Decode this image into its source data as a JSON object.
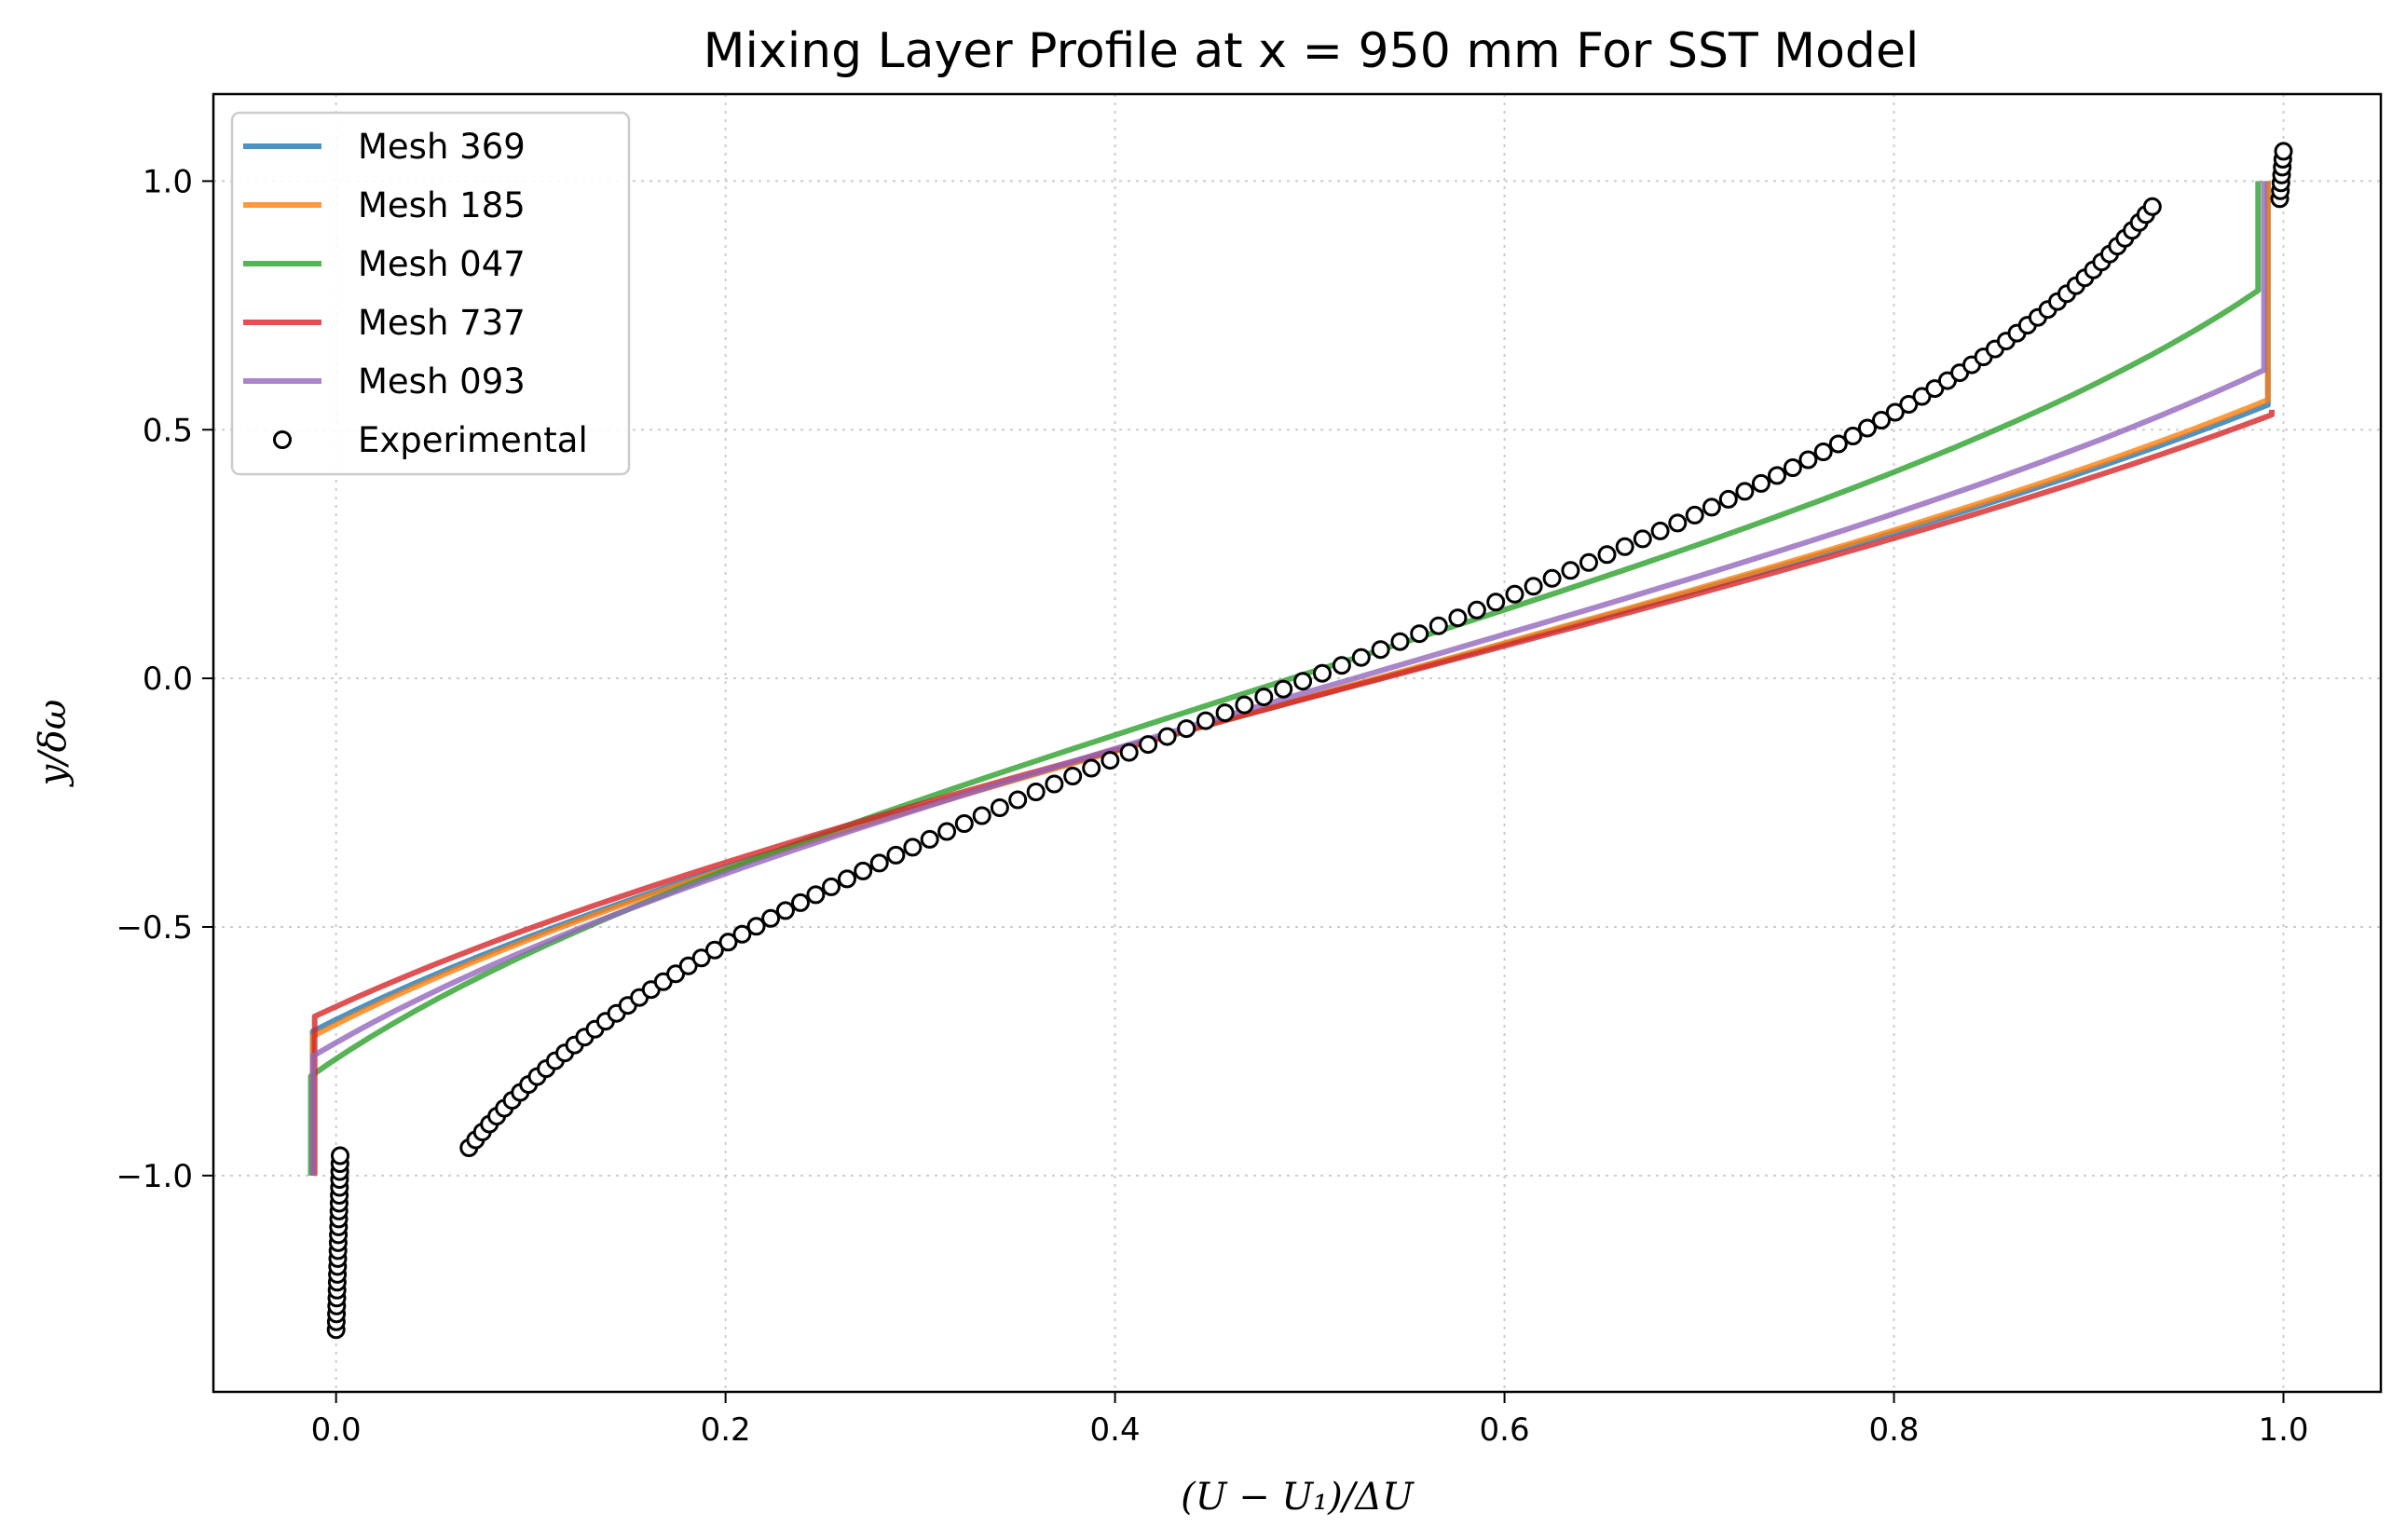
{
  "chart_data": {
    "type": "line",
    "title": "Mixing Layer Profile at x = 950 mm For SST Model",
    "xlabel": "(U − U₁)/ΔU",
    "ylabel": "y/δω",
    "xlim": [
      -0.063,
      1.05
    ],
    "ylim": [
      -1.435,
      1.175
    ],
    "xticks": [
      0.0,
      0.2,
      0.4,
      0.6,
      0.8,
      1.0
    ],
    "yticks": [
      -1.0,
      -0.5,
      0.0,
      0.5,
      1.0
    ],
    "xtick_labels": [
      "0.0",
      "0.2",
      "0.4",
      "0.6",
      "0.8",
      "1.0"
    ],
    "ytick_labels": [
      "−1.0",
      "−0.5",
      "0.0",
      "0.5",
      "1.0"
    ],
    "grid": true,
    "legend_position": "top-left",
    "series": [
      {
        "name": "Mesh 369",
        "color": "#1f77b4",
        "y_lower_knee": -0.71,
        "y_upper_knee": 0.55,
        "u_min": -0.012,
        "u_max": 0.992,
        "top_y": 1.0
      },
      {
        "name": "Mesh 185",
        "color": "#ff7f0e",
        "y_lower_knee": -0.72,
        "y_upper_knee": 0.56,
        "u_min": -0.012,
        "u_max": 0.992,
        "top_y": 1.0
      },
      {
        "name": "Mesh 047",
        "color": "#2ca02c",
        "y_lower_knee": -0.8,
        "y_upper_knee": 0.78,
        "u_min": -0.013,
        "u_max": 0.987,
        "top_y": 1.0
      },
      {
        "name": "Mesh 737",
        "color": "#d62728",
        "y_lower_knee": -0.68,
        "y_upper_knee": 0.53,
        "u_min": -0.011,
        "u_max": 0.994,
        "top_y": 0.54
      },
      {
        "name": "Mesh 093",
        "color": "#9467bd",
        "y_lower_knee": -0.76,
        "y_upper_knee": 0.62,
        "u_min": -0.012,
        "u_max": 0.99,
        "top_y": 1.0
      }
    ],
    "experimental": {
      "name": "Experimental",
      "y_range": [
        -1.31,
        1.06
      ],
      "count": 150
    }
  }
}
